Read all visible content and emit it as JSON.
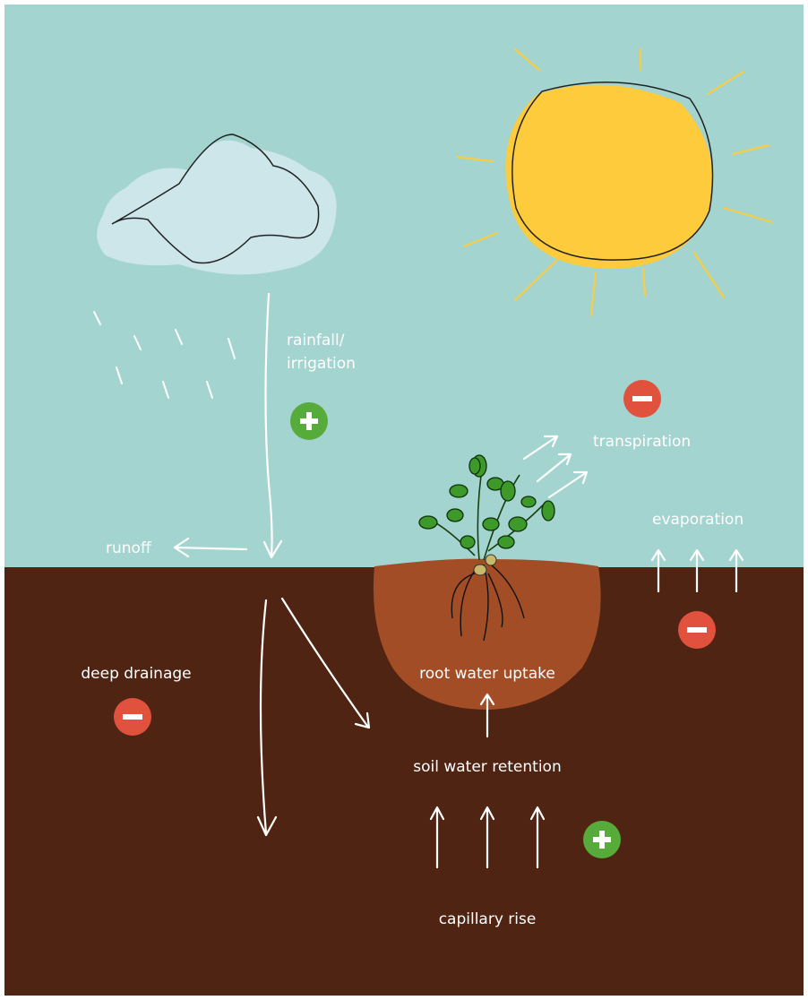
{
  "labels": {
    "rainfall": [
      "rainfall/",
      "irrigation"
    ],
    "runoff": "runoff",
    "transpiration": "transpiration",
    "evaporation": "evaporation",
    "deep_drainage": "deep drainage",
    "root_water_uptake": "root water uptake",
    "soil_water_retention": "soil water retention",
    "capillary_rise": "capillary rise"
  }
}
